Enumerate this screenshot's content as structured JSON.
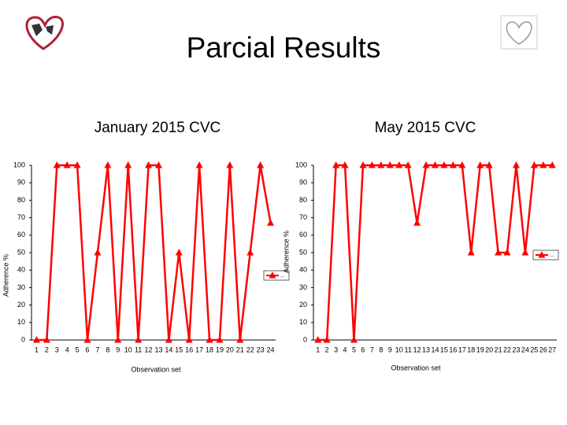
{
  "title": "Parcial Results",
  "chart_data": [
    {
      "type": "line",
      "title": "January 2015 CVC",
      "x_label": "Observation set",
      "y_label": "Adherence %",
      "categories": [
        1,
        2,
        3,
        4,
        5,
        6,
        7,
        8,
        9,
        10,
        11,
        12,
        13,
        14,
        15,
        16,
        17,
        18,
        19,
        20,
        21,
        22,
        23,
        24
      ],
      "series": [
        {
          "name": "...",
          "color": "#ff0000",
          "values": [
            0,
            0,
            100,
            100,
            100,
            0,
            50,
            100,
            0,
            100,
            0,
            100,
            100,
            0,
            50,
            0,
            100,
            0,
            0,
            100,
            0,
            50,
            100,
            67
          ]
        }
      ],
      "ylim": [
        0,
        100
      ],
      "yticks": [
        0,
        10,
        20,
        30,
        40,
        50,
        60,
        70,
        80,
        90,
        100
      ]
    },
    {
      "type": "line",
      "title": "May 2015 CVC",
      "x_label": "Observation set",
      "y_label": "Adherence %",
      "categories": [
        1,
        2,
        3,
        4,
        5,
        6,
        7,
        8,
        9,
        10,
        11,
        12,
        13,
        14,
        15,
        16,
        17,
        18,
        19,
        20,
        21,
        22,
        23,
        24,
        25,
        26,
        27
      ],
      "series": [
        {
          "name": "...",
          "color": "#ff0000",
          "values": [
            0,
            0,
            100,
            100,
            0,
            100,
            100,
            100,
            100,
            100,
            100,
            67,
            100,
            100,
            100,
            100,
            100,
            50,
            100,
            100,
            50,
            50,
            100,
            50,
            100,
            100,
            100
          ]
        }
      ],
      "ylim": [
        0,
        100
      ],
      "yticks": [
        0,
        10,
        20,
        30,
        40,
        50,
        60,
        70,
        80,
        90,
        100
      ]
    }
  ]
}
